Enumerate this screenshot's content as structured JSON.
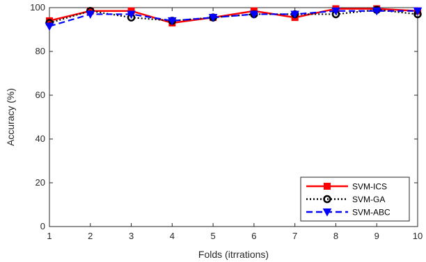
{
  "chart_data": {
    "type": "line",
    "title": "",
    "xlabel": "Folds (itrrations)",
    "ylabel": "Accuracy (%)",
    "xlim": [
      1,
      10
    ],
    "ylim": [
      0,
      100
    ],
    "x": [
      1,
      2,
      3,
      4,
      5,
      6,
      7,
      8,
      9,
      10
    ],
    "x_tick_labels": [
      "1",
      "2",
      "3",
      "4",
      "5",
      "6",
      "7",
      "8",
      "9",
      "10"
    ],
    "y_ticks": [
      0,
      20,
      40,
      60,
      80,
      100
    ],
    "y_tick_labels": [
      "0",
      "20",
      "40",
      "60",
      "80",
      "100"
    ],
    "grid": false,
    "legend_position": "bottom-right",
    "series": [
      {
        "name": "SVM-ICS",
        "values": [
          94,
          98.5,
          98.5,
          93,
          95.5,
          98.5,
          95.5,
          99.5,
          99.5,
          98.5
        ],
        "color": "#ff0000",
        "line_style": "solid",
        "marker": "square"
      },
      {
        "name": "SVM-GA",
        "values": [
          93,
          98.5,
          95.5,
          94,
          95.5,
          97,
          97,
          97,
          99,
          97
        ],
        "color": "#000000",
        "line_style": "dotted",
        "marker": "circle"
      },
      {
        "name": "SVM-ABC",
        "values": [
          91.5,
          97,
          97,
          94,
          95.5,
          97,
          97,
          98.5,
          98.5,
          98.5
        ],
        "color": "#0000ff",
        "line_style": "dashed",
        "marker": "triangle-down"
      }
    ]
  }
}
